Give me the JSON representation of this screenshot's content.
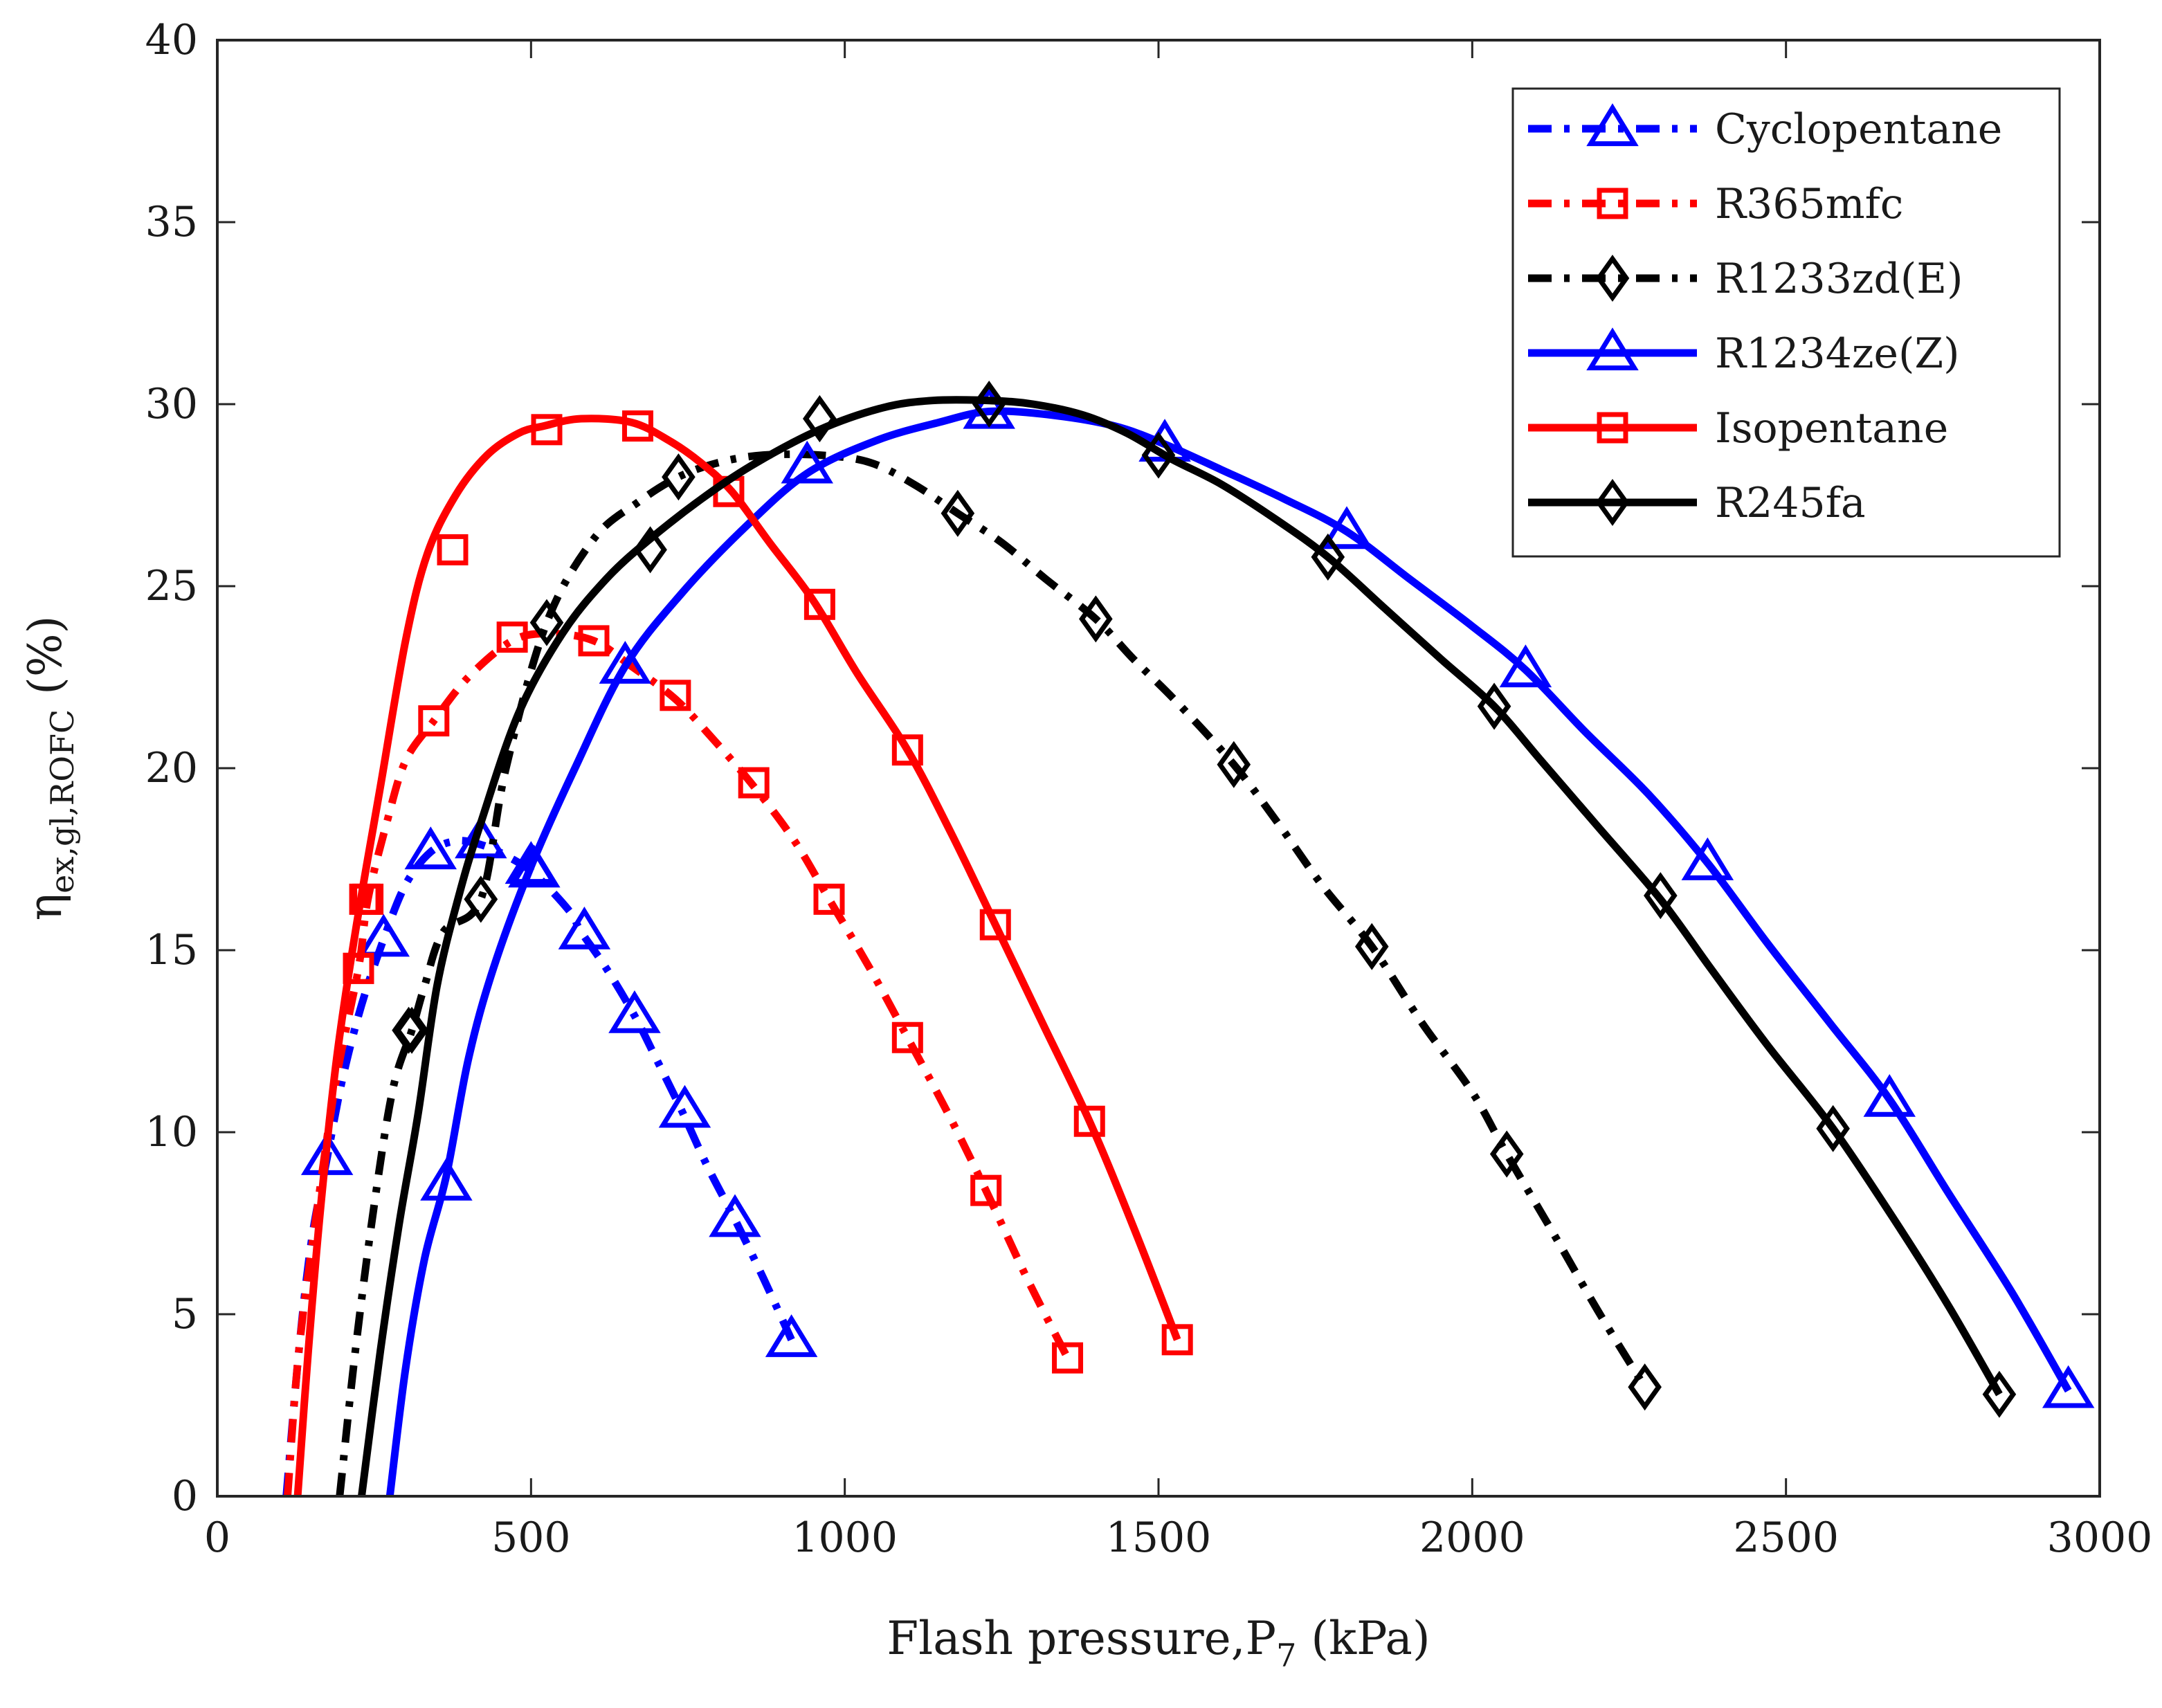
{
  "chart_data": {
    "type": "line",
    "xlabel": "Flash pressure,P",
    "xlabel_sub": "7",
    "xlabel_unit": " (kPa)",
    "ylabel": "η",
    "ylabel_sub": "ex,gl,ROFC",
    "ylabel_unit": " (%)",
    "xlim": [
      0,
      3000
    ],
    "ylim": [
      0,
      40
    ],
    "xticks": [
      0,
      500,
      1000,
      1500,
      2000,
      2500,
      3000
    ],
    "yticks": [
      0,
      5,
      10,
      15,
      20,
      25,
      30,
      35,
      40
    ],
    "legend_position": "top-right",
    "series": [
      {
        "name": "Cyclopentane",
        "color": "#0000ff",
        "style": "dashdot",
        "marker": "triangle",
        "curve": [
          [
            110,
            0
          ],
          [
            130,
            4
          ],
          [
            150,
            7
          ],
          [
            175,
            9.3
          ],
          [
            200,
            11.5
          ],
          [
            230,
            13.5
          ],
          [
            265,
            15.3
          ],
          [
            300,
            16.8
          ],
          [
            340,
            17.7
          ],
          [
            380,
            18.0
          ],
          [
            420,
            17.9
          ],
          [
            460,
            17.6
          ],
          [
            505,
            17.1
          ],
          [
            560,
            16.1
          ],
          [
            580,
            15.5
          ],
          [
            620,
            14.5
          ],
          [
            665,
            13.2
          ],
          [
            700,
            12.0
          ],
          [
            740,
            10.6
          ],
          [
            780,
            9.1
          ],
          [
            825,
            7.6
          ],
          [
            870,
            6.0
          ],
          [
            915,
            4.3
          ]
        ],
        "markers": [
          [
            175,
            9.3
          ],
          [
            265,
            15.3
          ],
          [
            340,
            17.7
          ],
          [
            420,
            18.0
          ],
          [
            505,
            17.2
          ],
          [
            585,
            15.5
          ],
          [
            665,
            13.2
          ],
          [
            745,
            10.6
          ],
          [
            825,
            7.6
          ],
          [
            915,
            4.3
          ]
        ]
      },
      {
        "name": "R365mfc",
        "color": "#ff0000",
        "style": "dashdot",
        "marker": "square",
        "curve": [
          [
            112,
            0
          ],
          [
            130,
            4
          ],
          [
            160,
            8
          ],
          [
            190,
            11.5
          ],
          [
            225,
            14.5
          ],
          [
            240,
            16.4
          ],
          [
            270,
            18.5
          ],
          [
            300,
            20.2
          ],
          [
            345,
            21.3
          ],
          [
            400,
            22.5
          ],
          [
            470,
            23.5
          ],
          [
            530,
            23.7
          ],
          [
            600,
            23.5
          ],
          [
            660,
            22.8
          ],
          [
            730,
            21.9
          ],
          [
            790,
            20.8
          ],
          [
            855,
            19.5
          ],
          [
            920,
            18.0
          ],
          [
            975,
            16.4
          ],
          [
            1040,
            14.5
          ],
          [
            1100,
            12.6
          ],
          [
            1165,
            10.5
          ],
          [
            1225,
            8.4
          ],
          [
            1290,
            6.0
          ],
          [
            1355,
            3.8
          ]
        ],
        "markers": [
          [
            225,
            14.5
          ],
          [
            240,
            16.4
          ],
          [
            345,
            21.3
          ],
          [
            470,
            23.6
          ],
          [
            600,
            23.5
          ],
          [
            730,
            22.0
          ],
          [
            855,
            19.6
          ],
          [
            975,
            16.4
          ],
          [
            1100,
            12.6
          ],
          [
            1225,
            8.4
          ],
          [
            1355,
            3.8
          ]
        ]
      },
      {
        "name": "R1233zd(E)",
        "color": "#000000",
        "style": "dashdot",
        "marker": "diamond",
        "curve": [
          [
            195,
            0
          ],
          [
            220,
            4
          ],
          [
            250,
            8
          ],
          [
            280,
            11.2
          ],
          [
            310,
            12.8
          ],
          [
            330,
            14
          ],
          [
            360,
            15.5
          ],
          [
            420,
            16.4
          ],
          [
            460,
            20
          ],
          [
            525,
            24.0
          ],
          [
            600,
            26.3
          ],
          [
            670,
            27.3
          ],
          [
            735,
            28.0
          ],
          [
            800,
            28.4
          ],
          [
            870,
            28.6
          ],
          [
            960,
            28.6
          ],
          [
            1040,
            28.4
          ],
          [
            1110,
            27.8
          ],
          [
            1180,
            27.0
          ],
          [
            1250,
            26.2
          ],
          [
            1320,
            25.2
          ],
          [
            1400,
            24.1
          ],
          [
            1460,
            23.0
          ],
          [
            1530,
            21.8
          ],
          [
            1620,
            20.1
          ],
          [
            1690,
            18.5
          ],
          [
            1760,
            16.8
          ],
          [
            1840,
            15.1
          ],
          [
            1920,
            13.0
          ],
          [
            2000,
            11.1
          ],
          [
            2055,
            9.4
          ],
          [
            2130,
            7.2
          ],
          [
            2200,
            5.1
          ],
          [
            2275,
            3.0
          ]
        ],
        "markers": [
          [
            310,
            12.8
          ],
          [
            420,
            16.4
          ],
          [
            525,
            24.0
          ],
          [
            735,
            28.0
          ],
          [
            960,
            29.6
          ],
          [
            1180,
            27.0
          ],
          [
            1400,
            24.1
          ],
          [
            1620,
            20.1
          ],
          [
            1840,
            15.1
          ],
          [
            2055,
            9.4
          ],
          [
            2275,
            3.0
          ]
        ]
      },
      {
        "name": "R1234ze(Z)",
        "color": "#0000ff",
        "style": "solid",
        "marker": "triangle",
        "curve": [
          [
            275,
            0
          ],
          [
            300,
            3.5
          ],
          [
            330,
            6.5
          ],
          [
            365,
            8.8
          ],
          [
            400,
            12
          ],
          [
            440,
            14.5
          ],
          [
            500,
            17.3
          ],
          [
            570,
            20.0
          ],
          [
            650,
            22.8
          ],
          [
            740,
            24.8
          ],
          [
            840,
            26.6
          ],
          [
            940,
            28.1
          ],
          [
            1050,
            29.0
          ],
          [
            1150,
            29.5
          ],
          [
            1230,
            29.8
          ],
          [
            1330,
            29.7
          ],
          [
            1430,
            29.4
          ],
          [
            1510,
            28.9
          ],
          [
            1600,
            28.2
          ],
          [
            1700,
            27.4
          ],
          [
            1800,
            26.5
          ],
          [
            1900,
            25.2
          ],
          [
            2000,
            23.9
          ],
          [
            2085,
            22.7
          ],
          [
            2180,
            21.0
          ],
          [
            2280,
            19.3
          ],
          [
            2375,
            17.4
          ],
          [
            2470,
            15.2
          ],
          [
            2570,
            13.0
          ],
          [
            2665,
            10.9
          ],
          [
            2760,
            8.3
          ],
          [
            2860,
            5.6
          ],
          [
            2950,
            2.9
          ]
        ],
        "markers": [
          [
            365,
            8.6
          ],
          [
            500,
            17.3
          ],
          [
            650,
            22.8
          ],
          [
            940,
            28.3
          ],
          [
            1230,
            29.8
          ],
          [
            1510,
            28.9
          ],
          [
            1800,
            26.5
          ],
          [
            2085,
            22.7
          ],
          [
            2375,
            17.4
          ],
          [
            2665,
            10.9
          ],
          [
            2950,
            2.9
          ]
        ]
      },
      {
        "name": "Isopentane",
        "color": "#ff0000",
        "style": "solid",
        "marker": "square",
        "curve": [
          [
            128,
            0
          ],
          [
            145,
            4
          ],
          [
            165,
            8
          ],
          [
            190,
            12
          ],
          [
            220,
            15.5
          ],
          [
            260,
            19.5
          ],
          [
            300,
            23.5
          ],
          [
            335,
            25.9
          ],
          [
            380,
            27.5
          ],
          [
            430,
            28.6
          ],
          [
            480,
            29.2
          ],
          [
            520,
            29.4
          ],
          [
            580,
            29.6
          ],
          [
            660,
            29.5
          ],
          [
            720,
            29.0
          ],
          [
            770,
            28.4
          ],
          [
            820,
            27.6
          ],
          [
            880,
            26.2
          ],
          [
            950,
            24.6
          ],
          [
            1020,
            22.6
          ],
          [
            1100,
            20.5
          ],
          [
            1170,
            18.2
          ],
          [
            1240,
            15.7
          ],
          [
            1315,
            13.0
          ],
          [
            1390,
            10.3
          ],
          [
            1460,
            7.4
          ],
          [
            1530,
            4.3
          ]
        ],
        "markers": [
          [
            225,
            14.5
          ],
          [
            235,
            16.4
          ],
          [
            375,
            26.0
          ],
          [
            525,
            29.3
          ],
          [
            670,
            29.4
          ],
          [
            815,
            27.6
          ],
          [
            960,
            24.5
          ],
          [
            1100,
            20.5
          ],
          [
            1240,
            15.7
          ],
          [
            1390,
            10.3
          ],
          [
            1530,
            4.3
          ]
        ]
      },
      {
        "name": "R245fa",
        "color": "#000000",
        "style": "solid",
        "marker": "diamond",
        "curve": [
          [
            230,
            0
          ],
          [
            260,
            4
          ],
          [
            290,
            7.5
          ],
          [
            320,
            10.5
          ],
          [
            350,
            14
          ],
          [
            385,
            16.5
          ],
          [
            420,
            18.5
          ],
          [
            480,
            21.5
          ],
          [
            550,
            23.7
          ],
          [
            620,
            25.2
          ],
          [
            690,
            26.3
          ],
          [
            780,
            27.5
          ],
          [
            860,
            28.4
          ],
          [
            960,
            29.3
          ],
          [
            1060,
            29.9
          ],
          [
            1140,
            30.1
          ],
          [
            1230,
            30.1
          ],
          [
            1300,
            30.0
          ],
          [
            1380,
            29.7
          ],
          [
            1450,
            29.2
          ],
          [
            1520,
            28.5
          ],
          [
            1600,
            27.8
          ],
          [
            1690,
            26.8
          ],
          [
            1770,
            25.8
          ],
          [
            1860,
            24.4
          ],
          [
            1950,
            23.0
          ],
          [
            2035,
            21.7
          ],
          [
            2110,
            20.2
          ],
          [
            2200,
            18.4
          ],
          [
            2300,
            16.4
          ],
          [
            2380,
            14.5
          ],
          [
            2470,
            12.4
          ],
          [
            2575,
            10.1
          ],
          [
            2680,
            7.4
          ],
          [
            2760,
            5.2
          ],
          [
            2840,
            2.8
          ]
        ],
        "markers": [
          [
            305,
            12.8
          ],
          [
            420,
            16.4
          ],
          [
            690,
            26.0
          ],
          [
            960,
            29.6
          ],
          [
            1230,
            30.0
          ],
          [
            1500,
            28.6
          ],
          [
            1770,
            25.8
          ],
          [
            2035,
            21.7
          ],
          [
            2300,
            16.5
          ],
          [
            2575,
            10.1
          ],
          [
            2840,
            2.8
          ]
        ]
      }
    ]
  }
}
